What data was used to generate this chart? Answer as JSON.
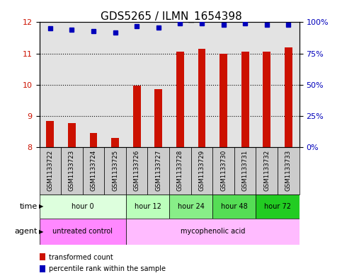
{
  "title": "GDS5265 / ILMN_1654398",
  "samples": [
    "GSM1133722",
    "GSM1133723",
    "GSM1133724",
    "GSM1133725",
    "GSM1133726",
    "GSM1133727",
    "GSM1133728",
    "GSM1133729",
    "GSM1133730",
    "GSM1133731",
    "GSM1133732",
    "GSM1133733"
  ],
  "bar_values": [
    8.85,
    8.77,
    8.45,
    8.3,
    9.97,
    9.85,
    11.07,
    11.15,
    11.0,
    11.07,
    11.05,
    11.2
  ],
  "blue_dot_values": [
    95,
    94,
    93,
    92,
    97,
    96,
    99,
    99,
    98,
    99,
    98,
    98
  ],
  "ylim_left": [
    8,
    12
  ],
  "ylim_right": [
    0,
    100
  ],
  "yticks_left": [
    8,
    9,
    10,
    11,
    12
  ],
  "yticks_right": [
    0,
    25,
    50,
    75,
    100
  ],
  "ytick_labels_right": [
    "0%",
    "25%",
    "50%",
    "75%",
    "100%"
  ],
  "bar_color": "#cc1100",
  "dot_color": "#0000bb",
  "bar_bottom": 8,
  "time_groups": [
    {
      "label": "hour 0",
      "start": 0,
      "end": 4,
      "color": "#ddffdd"
    },
    {
      "label": "hour 12",
      "start": 4,
      "end": 6,
      "color": "#bbffbb"
    },
    {
      "label": "hour 24",
      "start": 6,
      "end": 8,
      "color": "#88ee88"
    },
    {
      "label": "hour 48",
      "start": 8,
      "end": 10,
      "color": "#55dd55"
    },
    {
      "label": "hour 72",
      "start": 10,
      "end": 12,
      "color": "#22cc22"
    }
  ],
  "agent_groups": [
    {
      "label": "untreated control",
      "start": 0,
      "end": 4,
      "color": "#ff88ff"
    },
    {
      "label": "mycophenolic acid",
      "start": 4,
      "end": 12,
      "color": "#ffbbff"
    }
  ],
  "time_label": "time",
  "agent_label": "agent",
  "background_color": "#ffffff",
  "sample_area_color": "#cccccc",
  "grid_color": "#000000",
  "title_fontsize": 11,
  "tick_fontsize": 8,
  "label_fontsize": 7
}
